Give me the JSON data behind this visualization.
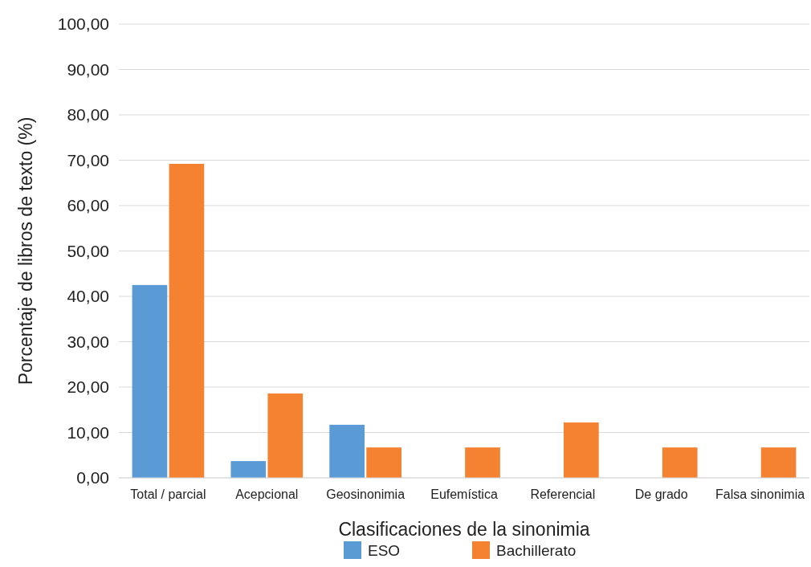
{
  "chart_data": {
    "type": "bar",
    "xlabel": "Clasificaciones de la sinonimia",
    "ylabel": "Porcentaje de libros de texto (%)",
    "categories": [
      "Total / parcial",
      "Acepcional",
      "Geosinonimia",
      "Eufemística",
      "Referencial",
      "De grado",
      "Falsa sinonimia"
    ],
    "series": [
      {
        "name": "ESO",
        "color": "#5b9bd5",
        "values": [
          42.5,
          3.7,
          11.7,
          0,
          0,
          0,
          0
        ]
      },
      {
        "name": "Bachillerato",
        "color": "#f58231",
        "values": [
          69.2,
          18.6,
          6.7,
          6.7,
          12.2,
          6.7,
          6.7
        ]
      }
    ],
    "ylim": [
      0,
      100
    ],
    "yticks": [
      {
        "value": 0,
        "label": "0,00"
      },
      {
        "value": 10,
        "label": "10,00"
      },
      {
        "value": 20,
        "label": "20,00"
      },
      {
        "value": 30,
        "label": "30,00"
      },
      {
        "value": 40,
        "label": "40,00"
      },
      {
        "value": 50,
        "label": "50,00"
      },
      {
        "value": 60,
        "label": "60,00"
      },
      {
        "value": 70,
        "label": "70,00"
      },
      {
        "value": 80,
        "label": "80,00"
      },
      {
        "value": 90,
        "label": "90,00"
      },
      {
        "value": 100,
        "label": "100,00"
      }
    ],
    "grid": "y",
    "legend": "bottom"
  }
}
